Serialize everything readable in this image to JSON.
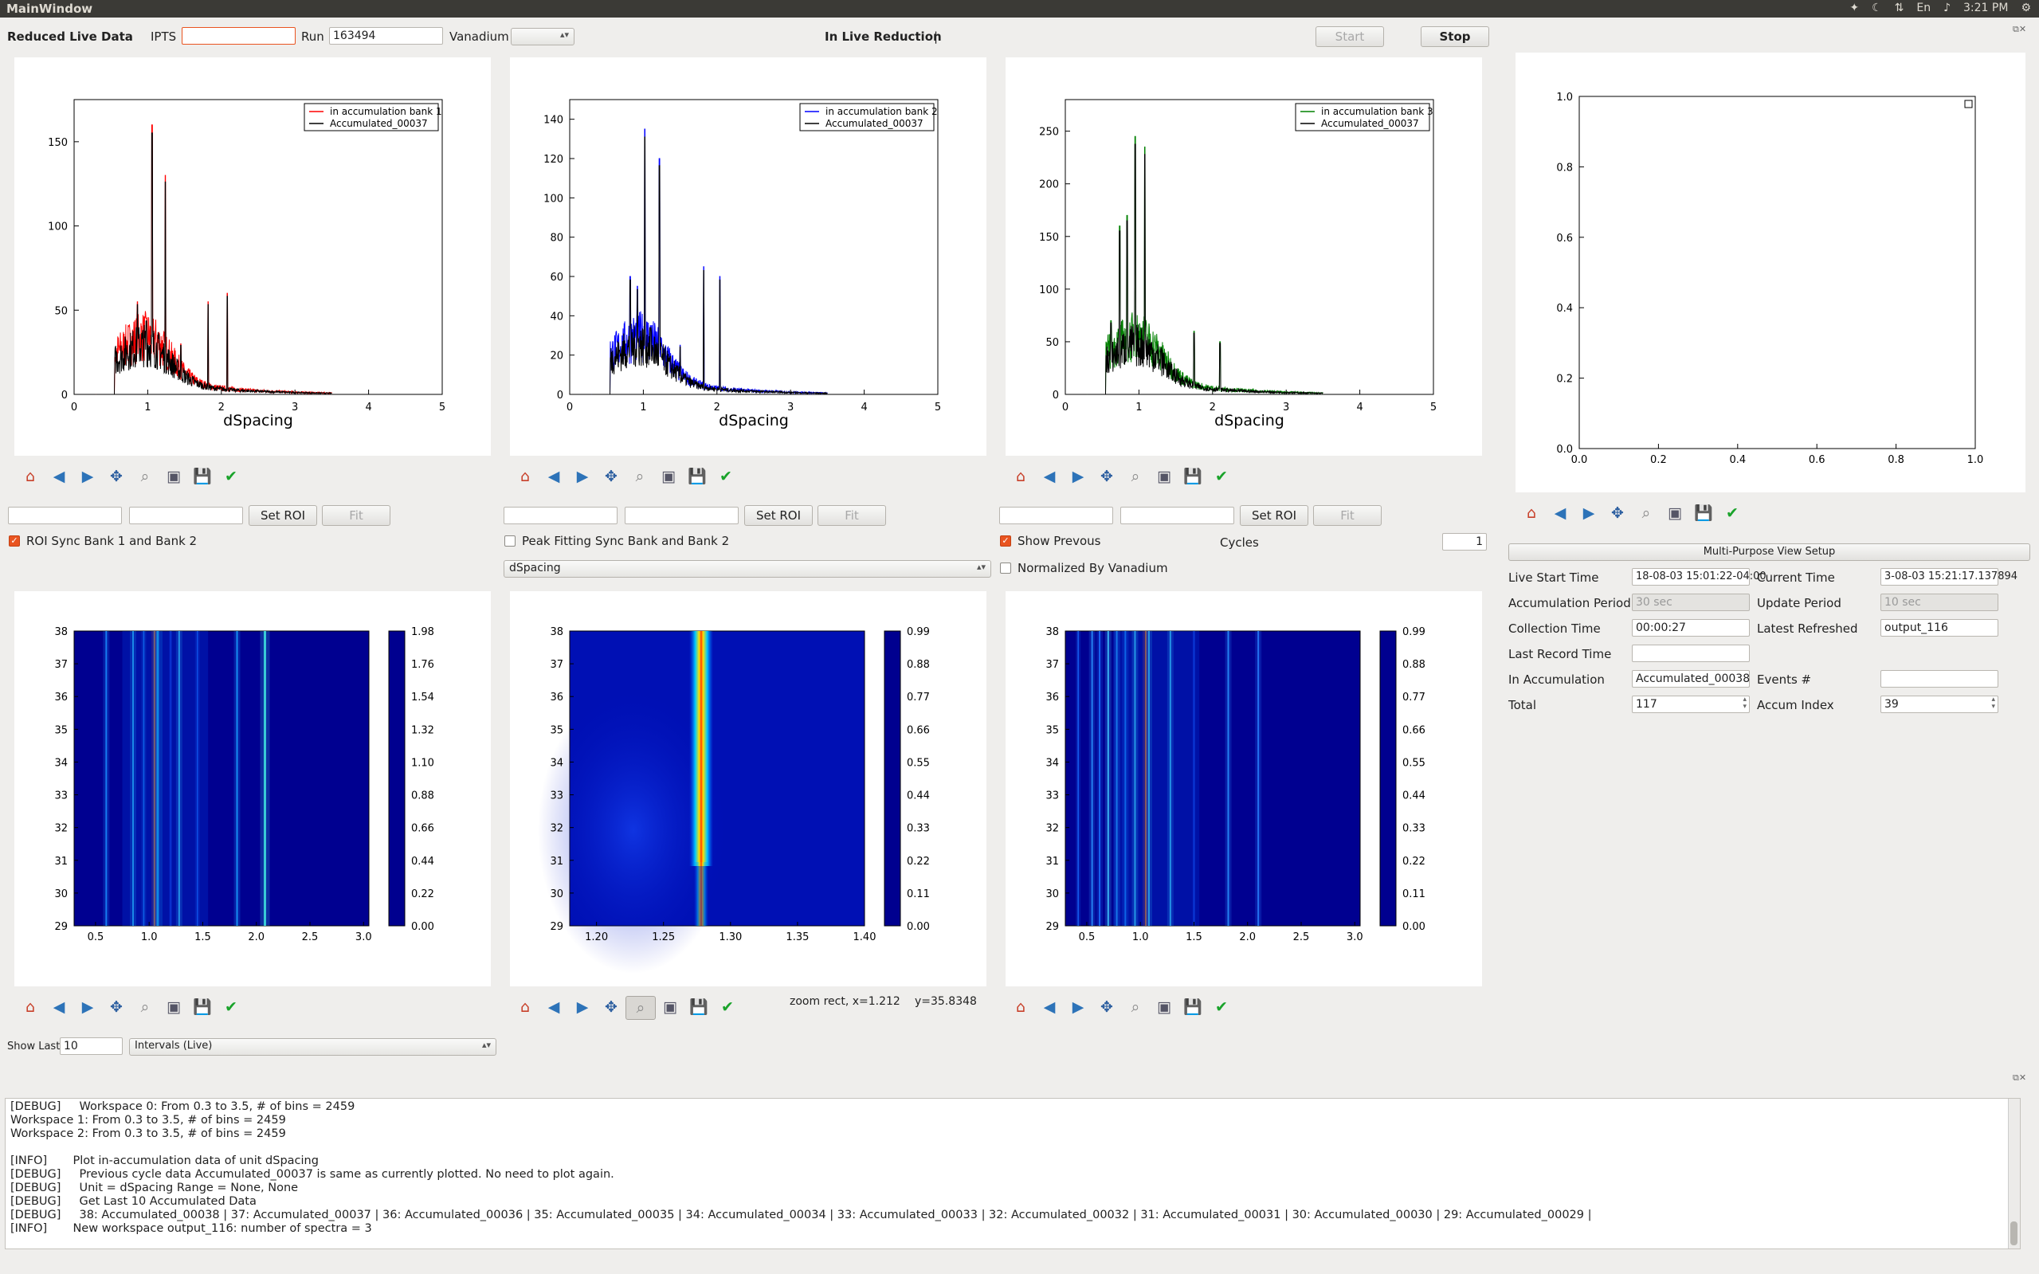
{
  "window": {
    "title": "MainWindow",
    "clock": "3:21 PM",
    "lang": "En"
  },
  "top": {
    "reduced_label": "Reduced Live Data",
    "ipts_label": "IPTS",
    "ipts_value": "",
    "run_label": "Run",
    "run_value": "163494",
    "vanadium_label": "Vanadium",
    "status": "In Live Reduction",
    "status_sep": "|",
    "start": "Start",
    "stop": "Stop"
  },
  "plots": [
    {
      "legend1": "in accumulation bank 1",
      "legend2": "Accumulated_00037",
      "xlabel": "dSpacing",
      "yticks": [
        "0",
        "50",
        "100",
        "150"
      ],
      "xticks": [
        "0",
        "1",
        "2",
        "3",
        "4",
        "5"
      ]
    },
    {
      "legend1": "in accumulation bank 2",
      "legend2": "Accumulated_00037",
      "xlabel": "dSpacing",
      "yticks": [
        "0",
        "20",
        "40",
        "60",
        "80",
        "100",
        "120",
        "140"
      ],
      "xticks": [
        "0",
        "1",
        "2",
        "3",
        "4",
        "5"
      ]
    },
    {
      "legend1": "in accumulation bank 3",
      "legend2": "Accumulated_00037",
      "xlabel": "dSpacing",
      "yticks": [
        "0",
        "50",
        "100",
        "150",
        "200",
        "250"
      ],
      "xticks": [
        "0",
        "1",
        "2",
        "3",
        "4",
        "5"
      ]
    }
  ],
  "chart_data": [
    {
      "type": "line",
      "title": "",
      "xlabel": "dSpacing",
      "ylabel": "",
      "xlim": [
        0,
        5
      ],
      "ylim": [
        0,
        175
      ],
      "series": [
        {
          "name": "in accumulation bank 1",
          "color": "#ff0000"
        },
        {
          "name": "Accumulated_00037",
          "color": "#000000"
        }
      ]
    },
    {
      "type": "line",
      "title": "",
      "xlabel": "dSpacing",
      "ylabel": "",
      "xlim": [
        0,
        5
      ],
      "ylim": [
        0,
        150
      ],
      "series": [
        {
          "name": "in accumulation bank 2",
          "color": "#0000ff"
        },
        {
          "name": "Accumulated_00037",
          "color": "#000000"
        }
      ]
    },
    {
      "type": "line",
      "title": "",
      "xlabel": "dSpacing",
      "ylabel": "",
      "xlim": [
        0,
        5
      ],
      "ylim": [
        0,
        280
      ],
      "series": [
        {
          "name": "in accumulation bank 3",
          "color": "#008000"
        },
        {
          "name": "Accumulated_00037",
          "color": "#000000"
        }
      ]
    },
    {
      "type": "line",
      "title": "",
      "xlim": [
        0,
        1
      ],
      "ylim": [
        0,
        1
      ],
      "series": []
    },
    {
      "type": "heatmap",
      "xlim": [
        0.3,
        3.05
      ],
      "ylim": [
        29,
        38
      ],
      "clim": [
        0,
        1.98
      ]
    },
    {
      "type": "heatmap",
      "xlim": [
        1.18,
        1.4
      ],
      "ylim": [
        29,
        38
      ],
      "clim": [
        0,
        0.99
      ]
    },
    {
      "type": "heatmap",
      "xlim": [
        0.3,
        3.05
      ],
      "ylim": [
        29,
        38
      ],
      "clim": [
        0,
        0.99
      ]
    }
  ],
  "plot4": {
    "xticks": [
      "0.0",
      "0.2",
      "0.4",
      "0.6",
      "0.8",
      "1.0"
    ],
    "yticks": [
      "0.0",
      "0.2",
      "0.4",
      "0.6",
      "0.8",
      "1.0"
    ]
  },
  "heat": [
    {
      "yticks": [
        "29",
        "30",
        "31",
        "32",
        "33",
        "34",
        "35",
        "36",
        "37",
        "38"
      ],
      "xticks": [
        "0.5",
        "1.0",
        "1.5",
        "2.0",
        "2.5",
        "3.0"
      ],
      "cticks": [
        "0.00",
        "0.22",
        "0.44",
        "0.66",
        "0.88",
        "1.10",
        "1.32",
        "1.54",
        "1.76",
        "1.98"
      ]
    },
    {
      "yticks": [
        "29",
        "30",
        "31",
        "32",
        "33",
        "34",
        "35",
        "36",
        "37",
        "38"
      ],
      "xticks": [
        "1.20",
        "1.25",
        "1.30",
        "1.35",
        "1.40"
      ],
      "cticks": [
        "0.00",
        "0.11",
        "0.22",
        "0.33",
        "0.44",
        "0.55",
        "0.66",
        "0.77",
        "0.88",
        "0.99"
      ]
    },
    {
      "yticks": [
        "29",
        "30",
        "31",
        "32",
        "33",
        "34",
        "35",
        "36",
        "37",
        "38"
      ],
      "xticks": [
        "0.5",
        "1.0",
        "1.5",
        "2.0",
        "2.5",
        "3.0"
      ],
      "cticks": [
        "0.00",
        "0.11",
        "0.22",
        "0.33",
        "0.44",
        "0.55",
        "0.66",
        "0.77",
        "0.88",
        "0.99"
      ]
    }
  ],
  "roi": {
    "set_roi": "Set ROI",
    "fit": "Fit"
  },
  "options": {
    "roi_sync": "ROI Sync Bank 1 and Bank 2",
    "peak_sync": "Peak Fitting Sync Bank and Bank 2",
    "show_prev": "Show Prevous",
    "cycles": "Cycles",
    "cycles_value": "1",
    "unit_combo": "dSpacing",
    "normalized": "Normalized By Vanadium"
  },
  "zoom_status": {
    "mode": "zoom rect, x=1.212",
    "y": "y=35.8348"
  },
  "show_last": {
    "label": "Show Last",
    "value": "10",
    "combo": "Intervals (Live)"
  },
  "info": {
    "setup_button": "Multi-Purpose View Setup",
    "live_start_label": "Live Start Time",
    "live_start_value": "18-08-03 15:01:22-04:00",
    "current_time_label": "Current Time",
    "current_time_value": "3-08-03 15:21:17.137894",
    "accum_period_label": "Accumulation Period",
    "accum_period_value": "30 sec",
    "update_period_label": "Update Period",
    "update_period_value": "10 sec",
    "collection_label": "Collection Time",
    "collection_value": "00:00:27",
    "latest_label": "Latest Refreshed",
    "latest_value": "output_116",
    "last_record_label": "Last Record Time",
    "last_record_value": "",
    "in_accum_label": "In Accumulation",
    "in_accum_value": "Accumulated_00038",
    "events_label": "Events #",
    "events_value": "",
    "total_label": "Total",
    "total_value": "117",
    "accum_index_label": "Accum Index",
    "accum_index_value": "39"
  },
  "log": [
    "[DEBUG]     Workspace 0: From 0.3 to 3.5, # of bins = 2459",
    "Workspace 1: From 0.3 to 3.5, # of bins = 2459",
    "Workspace 2: From 0.3 to 3.5, # of bins = 2459",
    "",
    "[INFO]       Plot in-accumulation data of unit dSpacing",
    "[DEBUG]     Previous cycle data Accumulated_00037 is same as currently plotted. No need to plot again.",
    "[DEBUG]     Unit = dSpacing Range = None, None",
    "[DEBUG]     Get Last 10 Accumulated Data",
    "[DEBUG]     38: Accumulated_00038 | 37: Accumulated_00037 | 36: Accumulated_00036 | 35: Accumulated_00035 | 34: Accumulated_00034 | 33: Accumulated_00033 | 32: Accumulated_00032 | 31: Accumulated_00031 | 30: Accumulated_00030 | 29: Accumulated_00029 |",
    "[INFO]       New workspace output_116: number of spectra = 3"
  ]
}
